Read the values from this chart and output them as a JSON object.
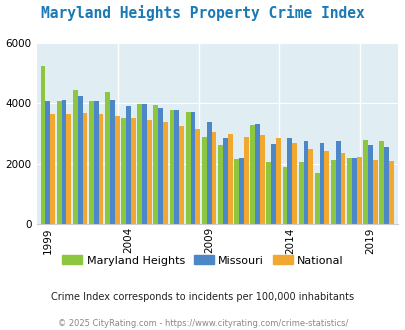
{
  "title": "Maryland Heights Property Crime Index",
  "years": [
    1999,
    2000,
    2001,
    2002,
    2003,
    2004,
    2005,
    2006,
    2007,
    2008,
    2009,
    2010,
    2011,
    2012,
    2013,
    2014,
    2015,
    2016,
    2017,
    2018,
    2019,
    2020
  ],
  "maryland_heights": [
    5250,
    4080,
    4450,
    4080,
    4380,
    3520,
    3980,
    3950,
    3780,
    3730,
    2900,
    2630,
    2160,
    3300,
    2050,
    1900,
    2050,
    1700,
    2130,
    2190,
    2800,
    2750
  ],
  "missouri": [
    4080,
    4100,
    4230,
    4080,
    4110,
    3930,
    3970,
    3840,
    3780,
    3720,
    3380,
    2870,
    2180,
    3320,
    2650,
    2840,
    2760,
    2700,
    2760,
    2200,
    2620,
    2570
  ],
  "national": [
    3650,
    3660,
    3680,
    3640,
    3590,
    3520,
    3460,
    3390,
    3260,
    3160,
    3050,
    2980,
    2900,
    2970,
    2840,
    2690,
    2490,
    2430,
    2360,
    2230,
    2120,
    2090
  ],
  "mh_color": "#8dc63f",
  "mo_color": "#4d87c7",
  "na_color": "#f0a830",
  "plot_bg": "#e0eef4",
  "ylim": [
    0,
    6000
  ],
  "yticks": [
    0,
    2000,
    4000,
    6000
  ],
  "subtitle": "Crime Index corresponds to incidents per 100,000 inhabitants",
  "footer": "© 2025 CityRating.com - https://www.cityrating.com/crime-statistics/",
  "legend_labels": [
    "Maryland Heights",
    "Missouri",
    "National"
  ],
  "tick_years": [
    1999,
    2004,
    2009,
    2014,
    2019
  ]
}
